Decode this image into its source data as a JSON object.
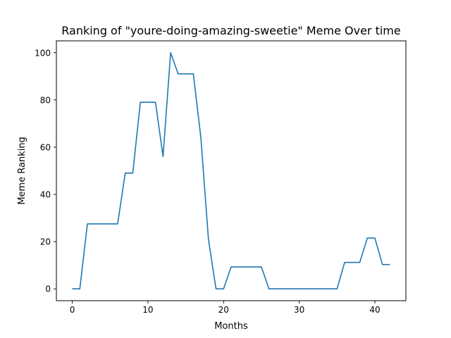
{
  "chart_data": {
    "type": "line",
    "title": "Ranking of \"youre-doing-amazing-sweetie\" Meme Over time",
    "xlabel": "Months",
    "ylabel": "Meme Ranking",
    "xlim": [
      -2.1,
      44.1
    ],
    "ylim": [
      -5,
      105
    ],
    "xticks": [
      0,
      10,
      20,
      30,
      40
    ],
    "yticks": [
      0,
      20,
      40,
      60,
      80,
      100
    ],
    "grid": false,
    "series": [
      {
        "color": "#1f77b4",
        "x": [
          0,
          1,
          2,
          3,
          4,
          5,
          6,
          7,
          8,
          9,
          10,
          11,
          12,
          13,
          14,
          15,
          16,
          17,
          18,
          19,
          20,
          21,
          22,
          23,
          24,
          25,
          26,
          27,
          28,
          29,
          30,
          31,
          32,
          33,
          34,
          35,
          36,
          37,
          38,
          39,
          40,
          41,
          42
        ],
        "y": [
          0,
          0,
          27.5,
          27.5,
          27.5,
          27.5,
          27.5,
          49,
          49,
          79,
          79,
          79,
          56,
          100,
          91,
          91,
          91,
          64,
          21,
          0,
          0,
          9.3,
          9.3,
          9.3,
          9.3,
          9.3,
          0,
          0,
          0,
          0,
          0,
          0,
          0,
          0,
          0,
          0,
          11.2,
          11.2,
          11.2,
          21.5,
          21.5,
          10.3,
          10.3
        ]
      }
    ]
  }
}
